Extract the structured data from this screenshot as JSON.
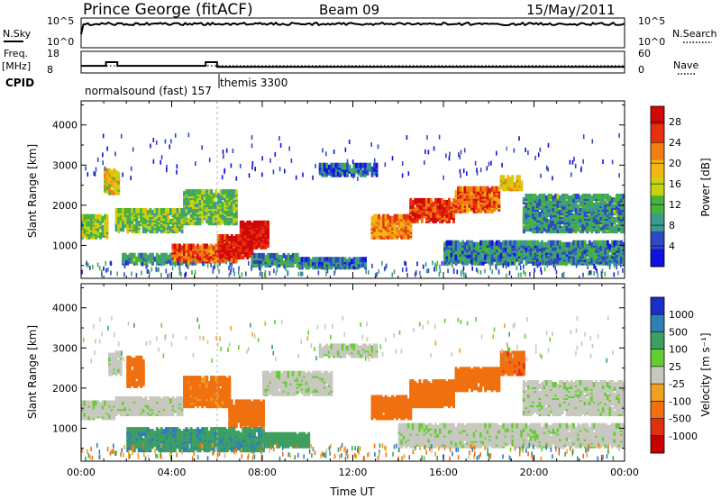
{
  "header": {
    "station": "Prince George (fitACF)",
    "beam": "Beam 09",
    "date": "15/May/2011"
  },
  "status_panels": {
    "nsky_label": "N.Sky",
    "nsearch_label": "N.Search",
    "nsky_ticks": [
      "10^5",
      "10^0"
    ],
    "freq_label_1": "Freq.",
    "freq_label_2": "[MHz]",
    "freq_ticks": [
      "18",
      "8"
    ],
    "nave_label": "Nave",
    "nave_ticks": [
      "60",
      "0"
    ],
    "cpid_label": "CPID",
    "cpid_segments": [
      {
        "name": "normalsound (fast) 157",
        "start_hr": 0,
        "end_hr": 6
      },
      {
        "name": "themis 3300",
        "start_hr": 6,
        "end_hr": 24
      }
    ],
    "freq_series": {
      "hours": [
        0,
        1.1,
        1.1,
        1.6,
        1.6,
        5.5,
        5.5,
        6.0,
        6.0,
        24
      ],
      "mhz": [
        11.3,
        11.3,
        13.0,
        13.0,
        11.3,
        11.3,
        13.0,
        13.0,
        10.8,
        10.8
      ]
    },
    "nave_reference": 20
  },
  "chart_data": [
    {
      "type": "heatmap",
      "name": "Power",
      "xlabel": "",
      "ylabel": "Slant Range [km]",
      "xlim": [
        0,
        24
      ],
      "ylim": [
        180,
        4600
      ],
      "yticks": [
        1000,
        2000,
        3000,
        4000
      ],
      "colorbar_label": "Power [dB]",
      "colorbar_ticks": [
        "4",
        "8",
        "12",
        "16",
        "20",
        "24",
        "28"
      ],
      "colorbar_range": [
        0,
        31
      ],
      "colorbar_colors": [
        "#1010e0",
        "#2f48c4",
        "#3b9a8c",
        "#46b33a",
        "#c8d20e",
        "#f2b712",
        "#f07f13",
        "#e8300e",
        "#d00808"
      ],
      "echo_regions": [
        {
          "t0": 0.0,
          "t1": 1.2,
          "r0": 1150,
          "r1": 1650,
          "value": 14
        },
        {
          "t0": 1.0,
          "t1": 1.7,
          "r0": 2250,
          "r1": 2800,
          "value": 18
        },
        {
          "t0": 1.5,
          "t1": 4.5,
          "r0": 1300,
          "r1": 1800,
          "value": 13
        },
        {
          "t0": 4.5,
          "t1": 6.8,
          "r0": 1500,
          "r1": 2300,
          "value": 12
        },
        {
          "t0": 1.8,
          "t1": 5.0,
          "r0": 500,
          "r1": 700,
          "value": 10
        },
        {
          "t0": 4.0,
          "t1": 6.8,
          "r0": 550,
          "r1": 950,
          "value": 24
        },
        {
          "t0": 6.0,
          "t1": 7.5,
          "r0": 650,
          "r1": 1150,
          "value": 28
        },
        {
          "t0": 7.0,
          "t1": 8.2,
          "r0": 900,
          "r1": 1500,
          "value": 29
        },
        {
          "t0": 7.5,
          "t1": 9.5,
          "r0": 450,
          "r1": 700,
          "value": 9
        },
        {
          "t0": 12.8,
          "t1": 14.5,
          "r0": 1150,
          "r1": 1650,
          "value": 22
        },
        {
          "t0": 14.5,
          "t1": 16.5,
          "r0": 1550,
          "r1": 2050,
          "value": 26
        },
        {
          "t0": 16.5,
          "t1": 18.5,
          "r0": 1800,
          "r1": 2350,
          "value": 24
        },
        {
          "t0": 18.5,
          "t1": 19.5,
          "r0": 2350,
          "r1": 2650,
          "value": 18
        },
        {
          "t0": 9.5,
          "t1": 12.5,
          "r0": 400,
          "r1": 600,
          "value": 7
        },
        {
          "t0": 16.0,
          "t1": 24.0,
          "r0": 500,
          "r1": 1000,
          "value": 8
        },
        {
          "t0": 19.5,
          "t1": 24.0,
          "r0": 1300,
          "r1": 2200,
          "value": 9
        },
        {
          "t0": 10.5,
          "t1": 13.0,
          "r0": 2700,
          "r1": 2950,
          "value": 6
        }
      ]
    },
    {
      "type": "heatmap",
      "name": "Velocity",
      "xlabel": "Time UT",
      "ylabel": "Slant Range [km]",
      "xlim": [
        0,
        24
      ],
      "ylim": [
        180,
        4600
      ],
      "yticks": [
        1000,
        2000,
        3000,
        4000
      ],
      "xticks": [
        "00:00",
        "04:00",
        "08:00",
        "12:00",
        "16:00",
        "20:00",
        "00:00"
      ],
      "colorbar_label": "Velocity [m s⁻¹]",
      "colorbar_ticks": [
        "1000",
        "500",
        "100",
        "25",
        "-25",
        "-100",
        "-500",
        "-1000"
      ],
      "colorbar_colors": [
        "#1a2fc8",
        "#2d7fb8",
        "#3f9f60",
        "#66cc33",
        "#c8c8c0",
        "#f0a020",
        "#f07010",
        "#e03010",
        "#c80000"
      ],
      "echo_regions": [
        {
          "t0": 0.0,
          "t1": 1.5,
          "r0": 1200,
          "r1": 1600,
          "value": 0
        },
        {
          "t0": 1.2,
          "t1": 1.8,
          "r0": 2300,
          "r1": 2800,
          "value": 0
        },
        {
          "t0": 1.5,
          "t1": 4.5,
          "r0": 1300,
          "r1": 1700,
          "value": 0
        },
        {
          "t0": 2.0,
          "t1": 2.8,
          "r0": 2000,
          "r1": 2700,
          "value": -200
        },
        {
          "t0": 4.5,
          "t1": 6.5,
          "r0": 1500,
          "r1": 2200,
          "value": -150
        },
        {
          "t0": 6.5,
          "t1": 8.0,
          "r0": 1000,
          "r1": 1600,
          "value": -300
        },
        {
          "t0": 2.0,
          "t1": 8.0,
          "r0": 400,
          "r1": 900,
          "value": 80
        },
        {
          "t0": 8.0,
          "t1": 10.0,
          "r0": 500,
          "r1": 800,
          "value": 60
        },
        {
          "t0": 8.0,
          "t1": 11.0,
          "r0": 1800,
          "r1": 2300,
          "value": 0
        },
        {
          "t0": 12.8,
          "t1": 14.5,
          "r0": 1200,
          "r1": 1700,
          "value": -250
        },
        {
          "t0": 14.5,
          "t1": 16.5,
          "r0": 1500,
          "r1": 2100,
          "value": -300
        },
        {
          "t0": 16.5,
          "t1": 18.5,
          "r0": 1900,
          "r1": 2400,
          "value": -350
        },
        {
          "t0": 18.5,
          "t1": 19.6,
          "r0": 2300,
          "r1": 2800,
          "value": -400
        },
        {
          "t0": 14.0,
          "t1": 24.0,
          "r0": 500,
          "r1": 1000,
          "value": 0
        },
        {
          "t0": 19.5,
          "t1": 24.0,
          "r0": 1300,
          "r1": 2100,
          "value": 0
        },
        {
          "t0": 10.5,
          "t1": 13.0,
          "r0": 2750,
          "r1": 3000,
          "value": 0
        }
      ]
    }
  ]
}
